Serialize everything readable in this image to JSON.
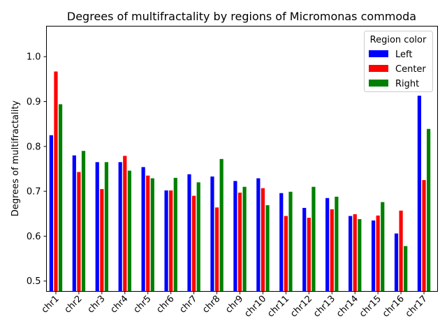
{
  "chart_data": {
    "type": "bar",
    "title": "Degrees of multifractality by regions of Micromonas commoda",
    "xlabel": "",
    "ylabel": "Degrees of multifractality",
    "ylim": [
      0.477,
      1.068
    ],
    "yticks": [
      0.5,
      0.6,
      0.7,
      0.8,
      0.9,
      1.0
    ],
    "ytick_labels": [
      "0.5",
      "0.6",
      "0.7",
      "0.8",
      "0.9",
      "1.0"
    ],
    "categories": [
      "chr1",
      "chr2",
      "chr3",
      "chr4",
      "chr5",
      "chr6",
      "chr7",
      "chr8",
      "chr9",
      "chr10",
      "chr11",
      "chr12",
      "chr13",
      "chr14",
      "chr15",
      "chr16",
      "chr17"
    ],
    "series": [
      {
        "name": "Left",
        "color": "#0000ff",
        "values": [
          0.825,
          0.78,
          0.765,
          0.765,
          0.754,
          0.702,
          0.738,
          0.733,
          0.723,
          0.729,
          0.696,
          0.663,
          0.685,
          0.645,
          0.635,
          0.606,
          0.913
        ]
      },
      {
        "name": "Center",
        "color": "#ff0000",
        "values": [
          0.967,
          0.743,
          0.705,
          0.779,
          0.735,
          0.702,
          0.69,
          0.664,
          0.697,
          0.707,
          0.645,
          0.641,
          0.66,
          0.649,
          0.646,
          0.657,
          0.725
        ]
      },
      {
        "name": "Right",
        "color": "#008000",
        "values": [
          0.894,
          0.79,
          0.765,
          0.746,
          0.729,
          0.73,
          0.72,
          0.772,
          0.71,
          0.669,
          0.699,
          0.71,
          0.688,
          0.638,
          0.676,
          0.578,
          0.839
        ]
      }
    ],
    "legend": {
      "title": "Region color",
      "placement": "top-right"
    },
    "grid": false
  }
}
